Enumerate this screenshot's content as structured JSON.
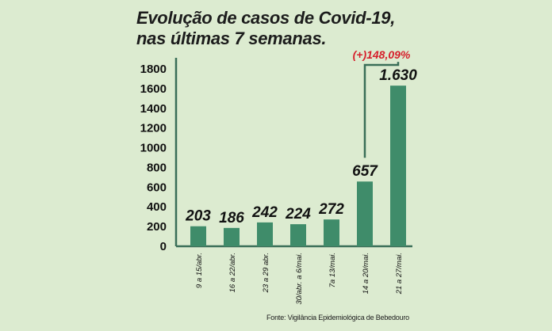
{
  "title": {
    "line1": "Evolução de casos de Covid-19,",
    "line2": "nas últimas 7 semanas."
  },
  "source": "Fonte: Vigilância Epidemiológica de Bebedouro",
  "colors": {
    "background": "#dcebd0",
    "bar": "#3f8c6a",
    "axis": "#3a6e58",
    "growth": "#d61f2b"
  },
  "chart_data": {
    "type": "bar",
    "categories": [
      "9 a 15/abr.",
      "16 a 22/abr.",
      "23 a 29 abr.",
      "30/abr. a 6/mai.",
      "7a 13/mai.",
      "14 a 20/mai.",
      "21 a 27/mai."
    ],
    "values": [
      203,
      186,
      242,
      224,
      272,
      657,
      1630
    ],
    "data_labels": [
      "203",
      "186",
      "242",
      "224",
      "272",
      "657",
      "1.630"
    ],
    "ylim": [
      0,
      1800
    ],
    "yticks": [
      0,
      200,
      400,
      600,
      800,
      1000,
      1200,
      1400,
      1600,
      1800
    ],
    "grid": false,
    "annotation": {
      "text": "(+)148,09%",
      "from_index": 5,
      "to_index": 6
    }
  }
}
